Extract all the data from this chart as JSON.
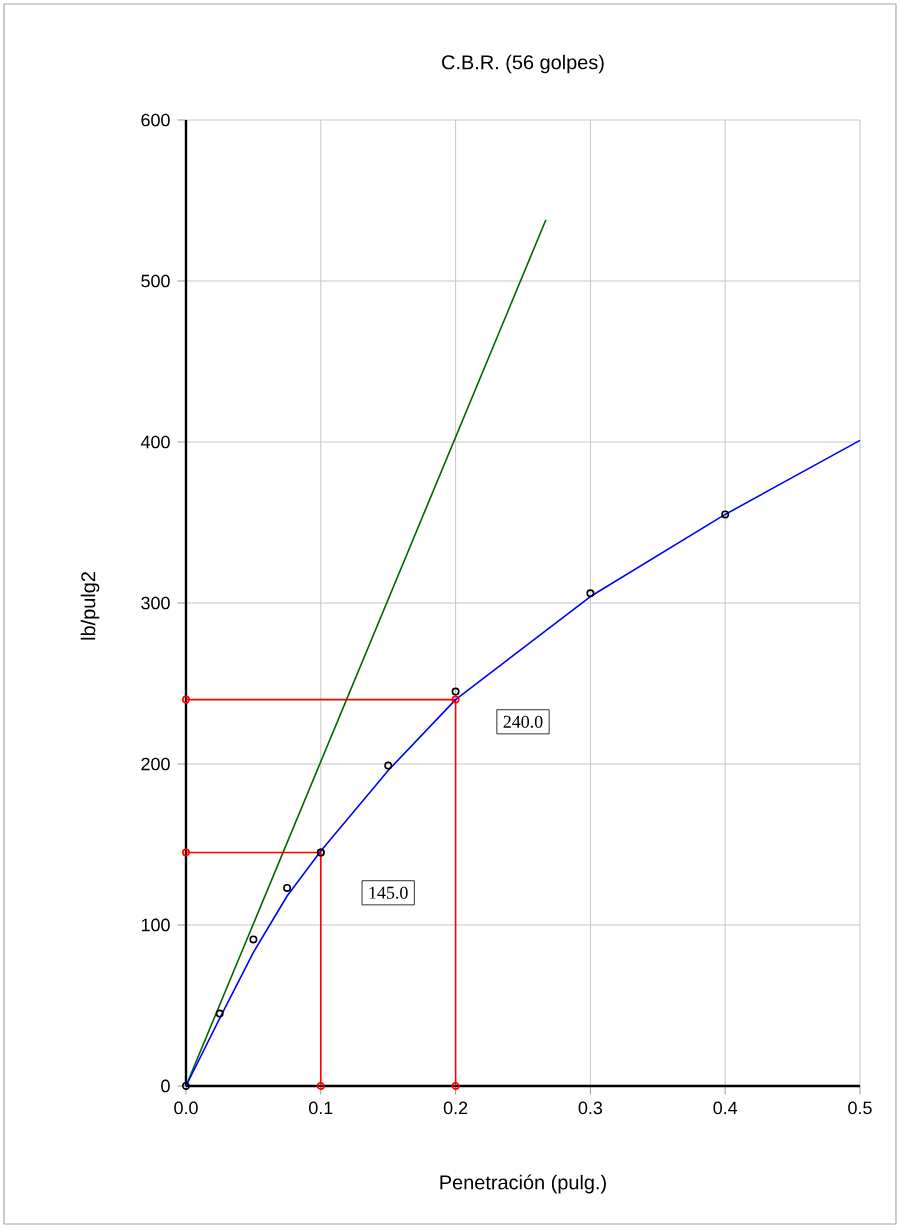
{
  "chart_data": {
    "type": "scatter",
    "title": "C.B.R. (56 golpes)",
    "xlabel": "Penetración (pulg.)",
    "ylabel": "lb/pulg2",
    "xlim": [
      0,
      0.5
    ],
    "ylim": [
      0,
      600
    ],
    "xticks": [
      {
        "value": 0,
        "label": "0.0"
      },
      {
        "value": 0.1,
        "label": "0.1"
      },
      {
        "value": 0.2,
        "label": "0.2"
      },
      {
        "value": 0.3,
        "label": "0.3"
      },
      {
        "value": 0.4,
        "label": "0.4"
      },
      {
        "value": 0.5,
        "label": "0.5"
      }
    ],
    "yticks": [
      0,
      100,
      200,
      300,
      400,
      500,
      600
    ],
    "grid": true,
    "series": [
      {
        "type": "line",
        "color": "#006400",
        "marker": "none",
        "x": [
          0,
          0.267
        ],
        "values": [
          0,
          538
        ]
      },
      {
        "type": "line",
        "color": "#ff0000",
        "marker": "circle",
        "x": [
          0,
          0.1,
          0.1
        ],
        "values": [
          145,
          145,
          0
        ]
      },
      {
        "type": "line",
        "color": "#ff0000",
        "marker": "circle",
        "x": [
          0,
          0.2,
          0.2
        ],
        "values": [
          240,
          240,
          0
        ]
      },
      {
        "type": "line",
        "color": "#0000ff",
        "marker": "none",
        "x": [
          0,
          0.025,
          0.05,
          0.075,
          0.1,
          0.15,
          0.2,
          0.3,
          0.4,
          0.5
        ],
        "values": [
          0,
          42,
          83,
          118,
          146,
          196,
          240,
          304,
          355,
          401
        ]
      },
      {
        "color": "#000000",
        "marker": "circle",
        "x": [
          0,
          0.025,
          0.05,
          0.075,
          0.1,
          0.15,
          0.2,
          0.3,
          0.4
        ],
        "values": [
          0,
          45,
          91,
          123,
          145,
          199,
          245,
          306,
          355
        ]
      }
    ],
    "annotations": [
      "145.0",
      "240.0"
    ]
  }
}
